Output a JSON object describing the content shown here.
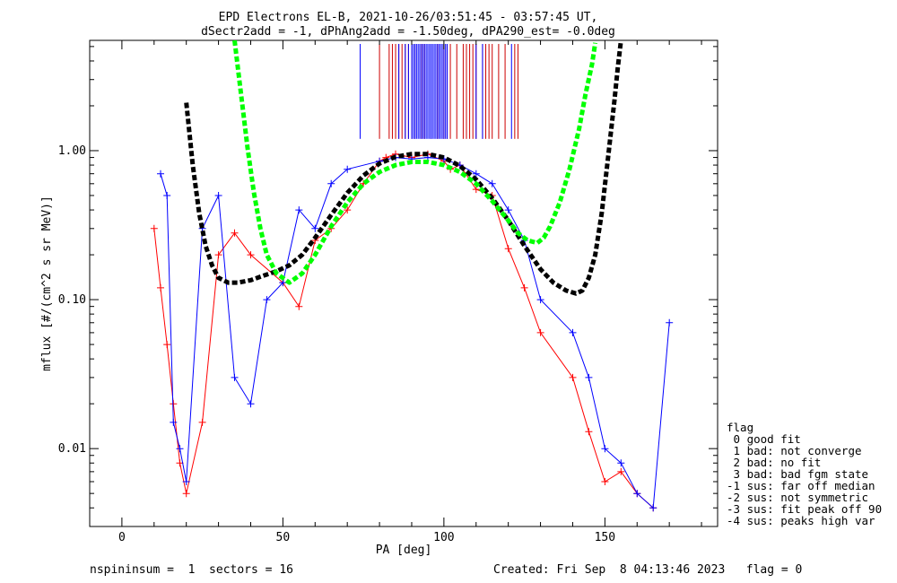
{
  "title_line1": "EPD Electrons EL-B, 2021-10-26/03:51:45 - 03:57:45 UT,",
  "title_line2": "dSectr2add = -1, dPhAng2add = -1.50deg, dPA290_est=  -0.0deg",
  "footer_left": "nspininsum =  1  sectors = 16",
  "footer_right": "Created: Fri Sep  8 04:13:46 2023   flag = 0",
  "legend": {
    "title": "flag",
    "items": [
      " 0 good fit",
      " 1 bad: not converge",
      " 2 bad: no fit",
      " 3 bad: bad fgm state",
      "-1 sus: far off median",
      "-2 sus: not symmetric",
      "-3 sus: fit peak off 90",
      "-4 sus: peaks high var"
    ]
  },
  "colors": {
    "red": "#ff0000",
    "blue": "#0000ff",
    "green": "#00ff00",
    "black": "#000000",
    "darkred": "#cc0000"
  },
  "chart_data": {
    "type": "line",
    "xlabel": "PA [deg]",
    "ylabel": "mflux [#/(cm^2 s sr MeV)]",
    "xlim": [
      -10,
      185
    ],
    "ylim": [
      0.003,
      5.5
    ],
    "yscale": "log",
    "xticks": [
      0,
      50,
      100,
      150
    ],
    "xtick_labels": [
      "0",
      "50",
      "100",
      "150"
    ],
    "yticks": [
      0.01,
      0.1,
      1.0
    ],
    "ytick_labels": [
      "0.01",
      "0.10",
      "1.00"
    ],
    "fits": [
      {
        "color": "black",
        "x": [
          20,
          22,
          24,
          26,
          28,
          30,
          33,
          36,
          40,
          44,
          48,
          52,
          56,
          60,
          65,
          70,
          75,
          80,
          85,
          90,
          95,
          100,
          105,
          110,
          115,
          120,
          125,
          130,
          134,
          138,
          141,
          143,
          145,
          147,
          149,
          151,
          153,
          154,
          155
        ],
        "y": [
          2.1,
          0.8,
          0.38,
          0.23,
          0.17,
          0.14,
          0.13,
          0.13,
          0.135,
          0.145,
          0.155,
          0.17,
          0.2,
          0.26,
          0.37,
          0.52,
          0.68,
          0.82,
          0.91,
          0.95,
          0.95,
          0.9,
          0.79,
          0.64,
          0.48,
          0.34,
          0.23,
          0.16,
          0.13,
          0.115,
          0.11,
          0.115,
          0.14,
          0.2,
          0.38,
          0.9,
          2.2,
          3.6,
          5.5
        ]
      },
      {
        "color": "green",
        "x": [
          35,
          37,
          39,
          41,
          43,
          45,
          48,
          52,
          56,
          60,
          65,
          70,
          75,
          80,
          85,
          90,
          95,
          100,
          105,
          110,
          115,
          120,
          123,
          126,
          129,
          131,
          133,
          136,
          139,
          142,
          144,
          146,
          147
        ],
        "y": [
          5.5,
          2.4,
          1.05,
          0.52,
          0.3,
          0.2,
          0.15,
          0.13,
          0.15,
          0.2,
          0.31,
          0.45,
          0.6,
          0.72,
          0.8,
          0.84,
          0.84,
          0.8,
          0.72,
          0.6,
          0.46,
          0.34,
          0.28,
          0.25,
          0.24,
          0.26,
          0.31,
          0.45,
          0.75,
          1.4,
          2.4,
          3.8,
          5.3
        ]
      }
    ],
    "tick_marks_top": {
      "blue_x": [
        74,
        86,
        88,
        89,
        90,
        90.5,
        91,
        91.5,
        92,
        92.5,
        93,
        93.5,
        94,
        94.5,
        95,
        95.5,
        96,
        96.5,
        97,
        97.5,
        98,
        98.5,
        99,
        99.5,
        100,
        100.5,
        101,
        110,
        112,
        121
      ],
      "red_x": [
        80,
        83,
        84,
        85,
        86,
        87,
        88,
        89,
        90,
        91,
        93,
        94,
        96,
        98,
        100,
        101,
        102,
        104,
        106,
        107,
        108,
        109,
        110,
        112,
        113,
        114,
        115,
        117,
        119,
        122,
        123
      ]
    },
    "scatter_series": [
      {
        "color": "red",
        "x": [
          10,
          12,
          14,
          16,
          18,
          20,
          25,
          30,
          35,
          40,
          50,
          55,
          60,
          65,
          70,
          75,
          80,
          82,
          85,
          90,
          95,
          100,
          102,
          105,
          110,
          115,
          120,
          125,
          130,
          140,
          145,
          150,
          155,
          160,
          165
        ],
        "y": [
          0.3,
          0.12,
          0.05,
          0.02,
          0.008,
          0.005,
          0.015,
          0.2,
          0.28,
          0.2,
          0.13,
          0.09,
          0.25,
          0.3,
          0.4,
          0.6,
          0.85,
          0.9,
          0.95,
          0.9,
          0.95,
          0.85,
          0.75,
          0.8,
          0.55,
          0.5,
          0.22,
          0.12,
          0.06,
          0.03,
          0.013,
          0.006,
          0.007,
          0.005,
          0.004
        ]
      },
      {
        "color": "blue",
        "x": [
          12,
          14,
          16,
          18,
          20,
          25,
          30,
          35,
          40,
          45,
          50,
          55,
          60,
          65,
          70,
          80,
          85,
          90,
          95,
          100,
          105,
          110,
          115,
          120,
          125,
          130,
          140,
          145,
          150,
          155,
          160,
          165,
          170
        ],
        "y": [
          0.7,
          0.5,
          0.015,
          0.01,
          0.006,
          0.3,
          0.5,
          0.03,
          0.02,
          0.1,
          0.13,
          0.4,
          0.3,
          0.6,
          0.75,
          0.85,
          0.9,
          0.88,
          0.9,
          0.88,
          0.8,
          0.7,
          0.6,
          0.4,
          0.25,
          0.1,
          0.06,
          0.03,
          0.01,
          0.008,
          0.005,
          0.004,
          0.07
        ]
      }
    ]
  }
}
